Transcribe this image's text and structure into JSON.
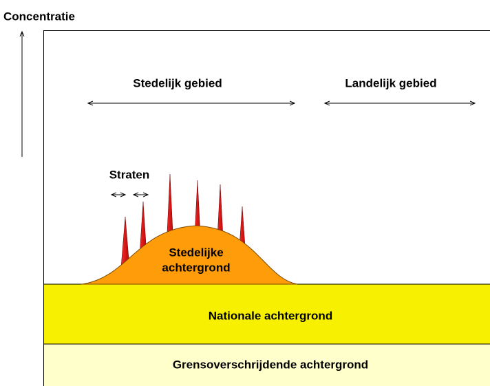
{
  "axis_label": "Concentratie",
  "regions": {
    "urban": "Stedelijk gebied",
    "rural": "Landelijk gebied"
  },
  "streets": "Straten",
  "urban_background": [
    "Stedelijke",
    "achtergrond"
  ],
  "national_background": "Nationale achtergrond",
  "transboundary_background": "Grensoverschrijdende achtergrond"
}
